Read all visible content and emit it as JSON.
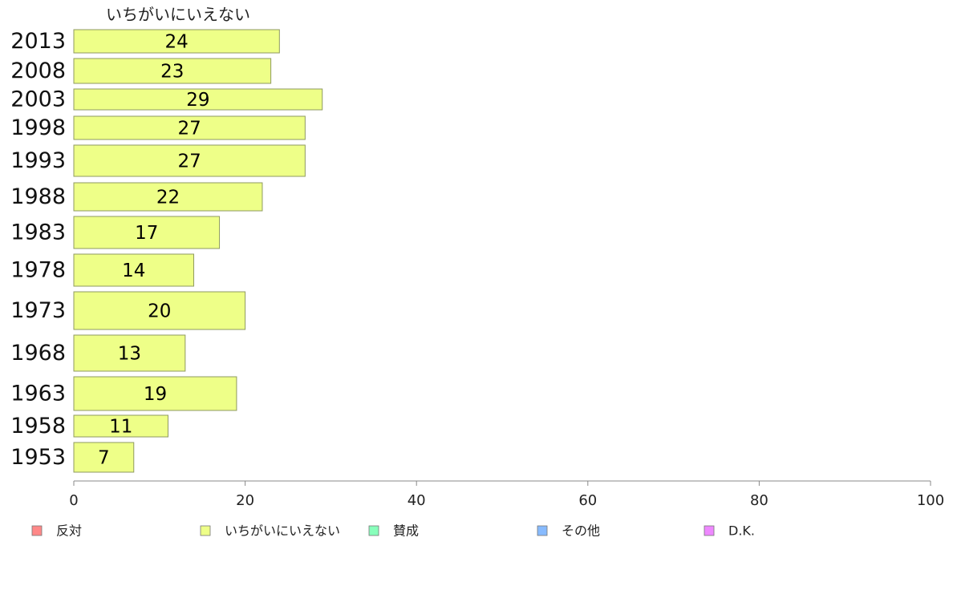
{
  "chart_data": {
    "type": "bar",
    "orientation": "horizontal",
    "stacked": true,
    "categories": [
      "2013",
      "2008",
      "2003",
      "1998",
      "1993",
      "1988",
      "1983",
      "1978",
      "1973",
      "1968",
      "1963",
      "1958",
      "1953"
    ],
    "series": [
      {
        "name": "いちがいにいえない",
        "color": "#eeff88",
        "values": [
          24,
          23,
          29,
          27,
          27,
          22,
          17,
          14,
          20,
          13,
          19,
          11,
          7
        ]
      }
    ],
    "series_label": "いちがいにいえない",
    "xlim": [
      0,
      100
    ],
    "xticks": [
      0,
      20,
      40,
      60,
      80,
      100
    ],
    "grid": false,
    "legend": {
      "placement": "bottom",
      "entries": [
        {
          "name": "反対",
          "color": "#ff8888"
        },
        {
          "name": "いちがいにいえない",
          "color": "#eeff88"
        },
        {
          "name": "賛成",
          "color": "#88ffbb"
        },
        {
          "name": "その他",
          "color": "#88bbff"
        },
        {
          "name": "D.K.",
          "color": "#ee88ff"
        }
      ]
    }
  }
}
